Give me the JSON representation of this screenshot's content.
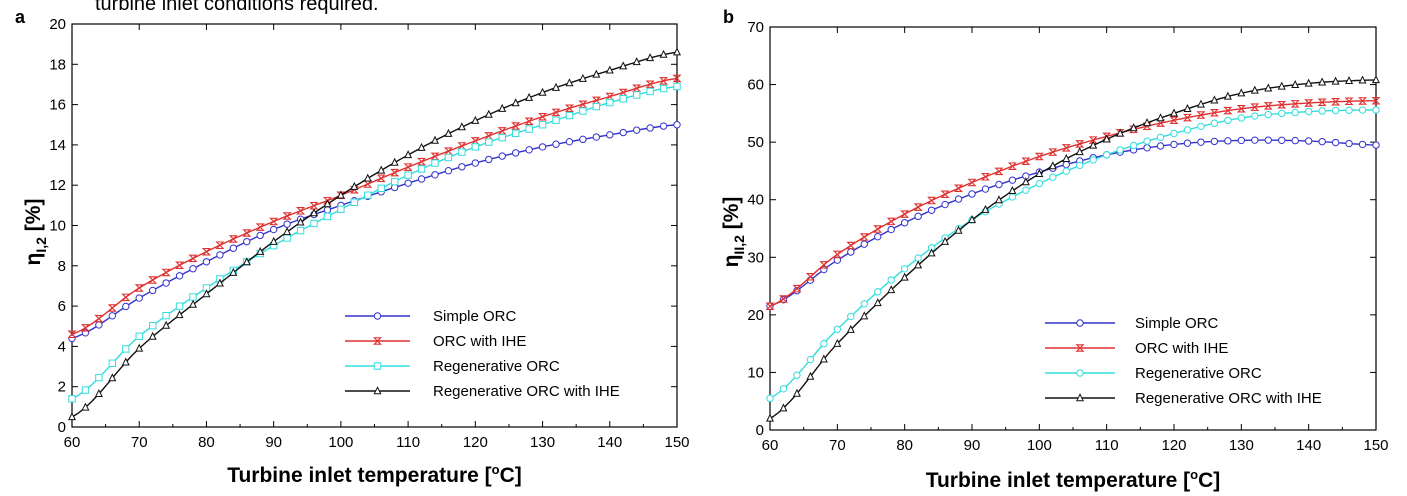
{
  "top_caption_fragment": "turbine inlet conditions required.",
  "chart_data": [
    {
      "type": "line",
      "panel_label": "a",
      "xlabel_main": "Turbine inlet temperature [",
      "xlabel_sup": "o",
      "xlabel_end": "C]",
      "ylabel_eta": "η",
      "ylabel_sub": "I,2",
      "ylabel_unit": "[%]",
      "xlim": [
        60,
        150
      ],
      "ylim": [
        0,
        20
      ],
      "xticks": [
        60,
        70,
        80,
        90,
        100,
        110,
        120,
        130,
        140,
        150
      ],
      "yticks": [
        0,
        2,
        4,
        6,
        8,
        10,
        12,
        14,
        16,
        18,
        20
      ],
      "legend_position": "bottom-right",
      "series": [
        {
          "name": "Simple ORC",
          "color": "#3333cc",
          "marker": "circle",
          "x": [
            60,
            70,
            80,
            90,
            100,
            110,
            120,
            130,
            140,
            150
          ],
          "y": [
            4.4,
            6.4,
            8.2,
            9.8,
            11.0,
            12.1,
            13.1,
            13.9,
            14.5,
            15.0
          ]
        },
        {
          "name": "ORC with IHE",
          "color": "#e03030",
          "marker": "hourglass",
          "x": [
            60,
            70,
            80,
            90,
            100,
            110,
            120,
            130,
            140,
            150
          ],
          "y": [
            4.6,
            6.9,
            8.7,
            10.2,
            11.5,
            12.9,
            14.2,
            15.4,
            16.4,
            17.3
          ]
        },
        {
          "name": "Regenerative ORC",
          "color": "#33dddd",
          "marker": "square",
          "x": [
            60,
            70,
            80,
            90,
            100,
            110,
            120,
            130,
            140,
            150
          ],
          "y": [
            1.4,
            4.5,
            6.9,
            9.0,
            10.8,
            12.5,
            13.9,
            15.0,
            16.1,
            16.9
          ]
        },
        {
          "name": "Regenerative ORC with IHE",
          "color": "#111111",
          "marker": "triangle",
          "x": [
            60,
            70,
            80,
            90,
            100,
            110,
            120,
            130,
            140,
            150
          ],
          "y": [
            0.5,
            3.9,
            6.6,
            9.2,
            11.5,
            13.5,
            15.2,
            16.6,
            17.7,
            18.6
          ]
        }
      ]
    },
    {
      "type": "line",
      "panel_label": "b",
      "xlabel_main": "Turbine inlet temperature [",
      "xlabel_sup": "o",
      "xlabel_end": "C]",
      "ylabel_eta": "η",
      "ylabel_sub": "II,2",
      "ylabel_unit": "[%]",
      "xlim": [
        60,
        150
      ],
      "ylim": [
        0,
        70
      ],
      "xticks": [
        60,
        70,
        80,
        90,
        100,
        110,
        120,
        130,
        140,
        150
      ],
      "yticks": [
        0,
        10,
        20,
        30,
        40,
        50,
        60,
        70
      ],
      "legend_position": "bottom-right",
      "series": [
        {
          "name": "Simple ORC",
          "color": "#3333cc",
          "marker": "circle",
          "x": [
            60,
            70,
            80,
            90,
            100,
            110,
            120,
            130,
            140,
            150
          ],
          "y": [
            21.5,
            29.5,
            36.0,
            41.0,
            44.8,
            47.8,
            49.6,
            50.3,
            50.2,
            49.5
          ]
        },
        {
          "name": "ORC with IHE",
          "color": "#e03030",
          "marker": "hourglass",
          "x": [
            60,
            70,
            80,
            90,
            100,
            110,
            120,
            130,
            140,
            150
          ],
          "y": [
            21.5,
            30.5,
            37.5,
            43.0,
            47.5,
            51.0,
            53.8,
            55.8,
            56.8,
            57.2
          ]
        },
        {
          "name": "Regenerative ORC",
          "color": "#33dddd",
          "marker": "circle",
          "x": [
            60,
            70,
            80,
            90,
            100,
            110,
            120,
            130,
            140,
            150
          ],
          "y": [
            5.5,
            17.5,
            28.0,
            36.5,
            42.8,
            47.8,
            51.5,
            54.2,
            55.3,
            55.6
          ]
        },
        {
          "name": "Regenerative ORC with IHE",
          "color": "#111111",
          "marker": "triangle",
          "x": [
            60,
            70,
            80,
            90,
            100,
            110,
            120,
            130,
            140,
            150
          ],
          "y": [
            2.0,
            15.0,
            26.5,
            36.5,
            44.5,
            50.5,
            55.0,
            58.5,
            60.2,
            60.8
          ]
        }
      ]
    }
  ]
}
